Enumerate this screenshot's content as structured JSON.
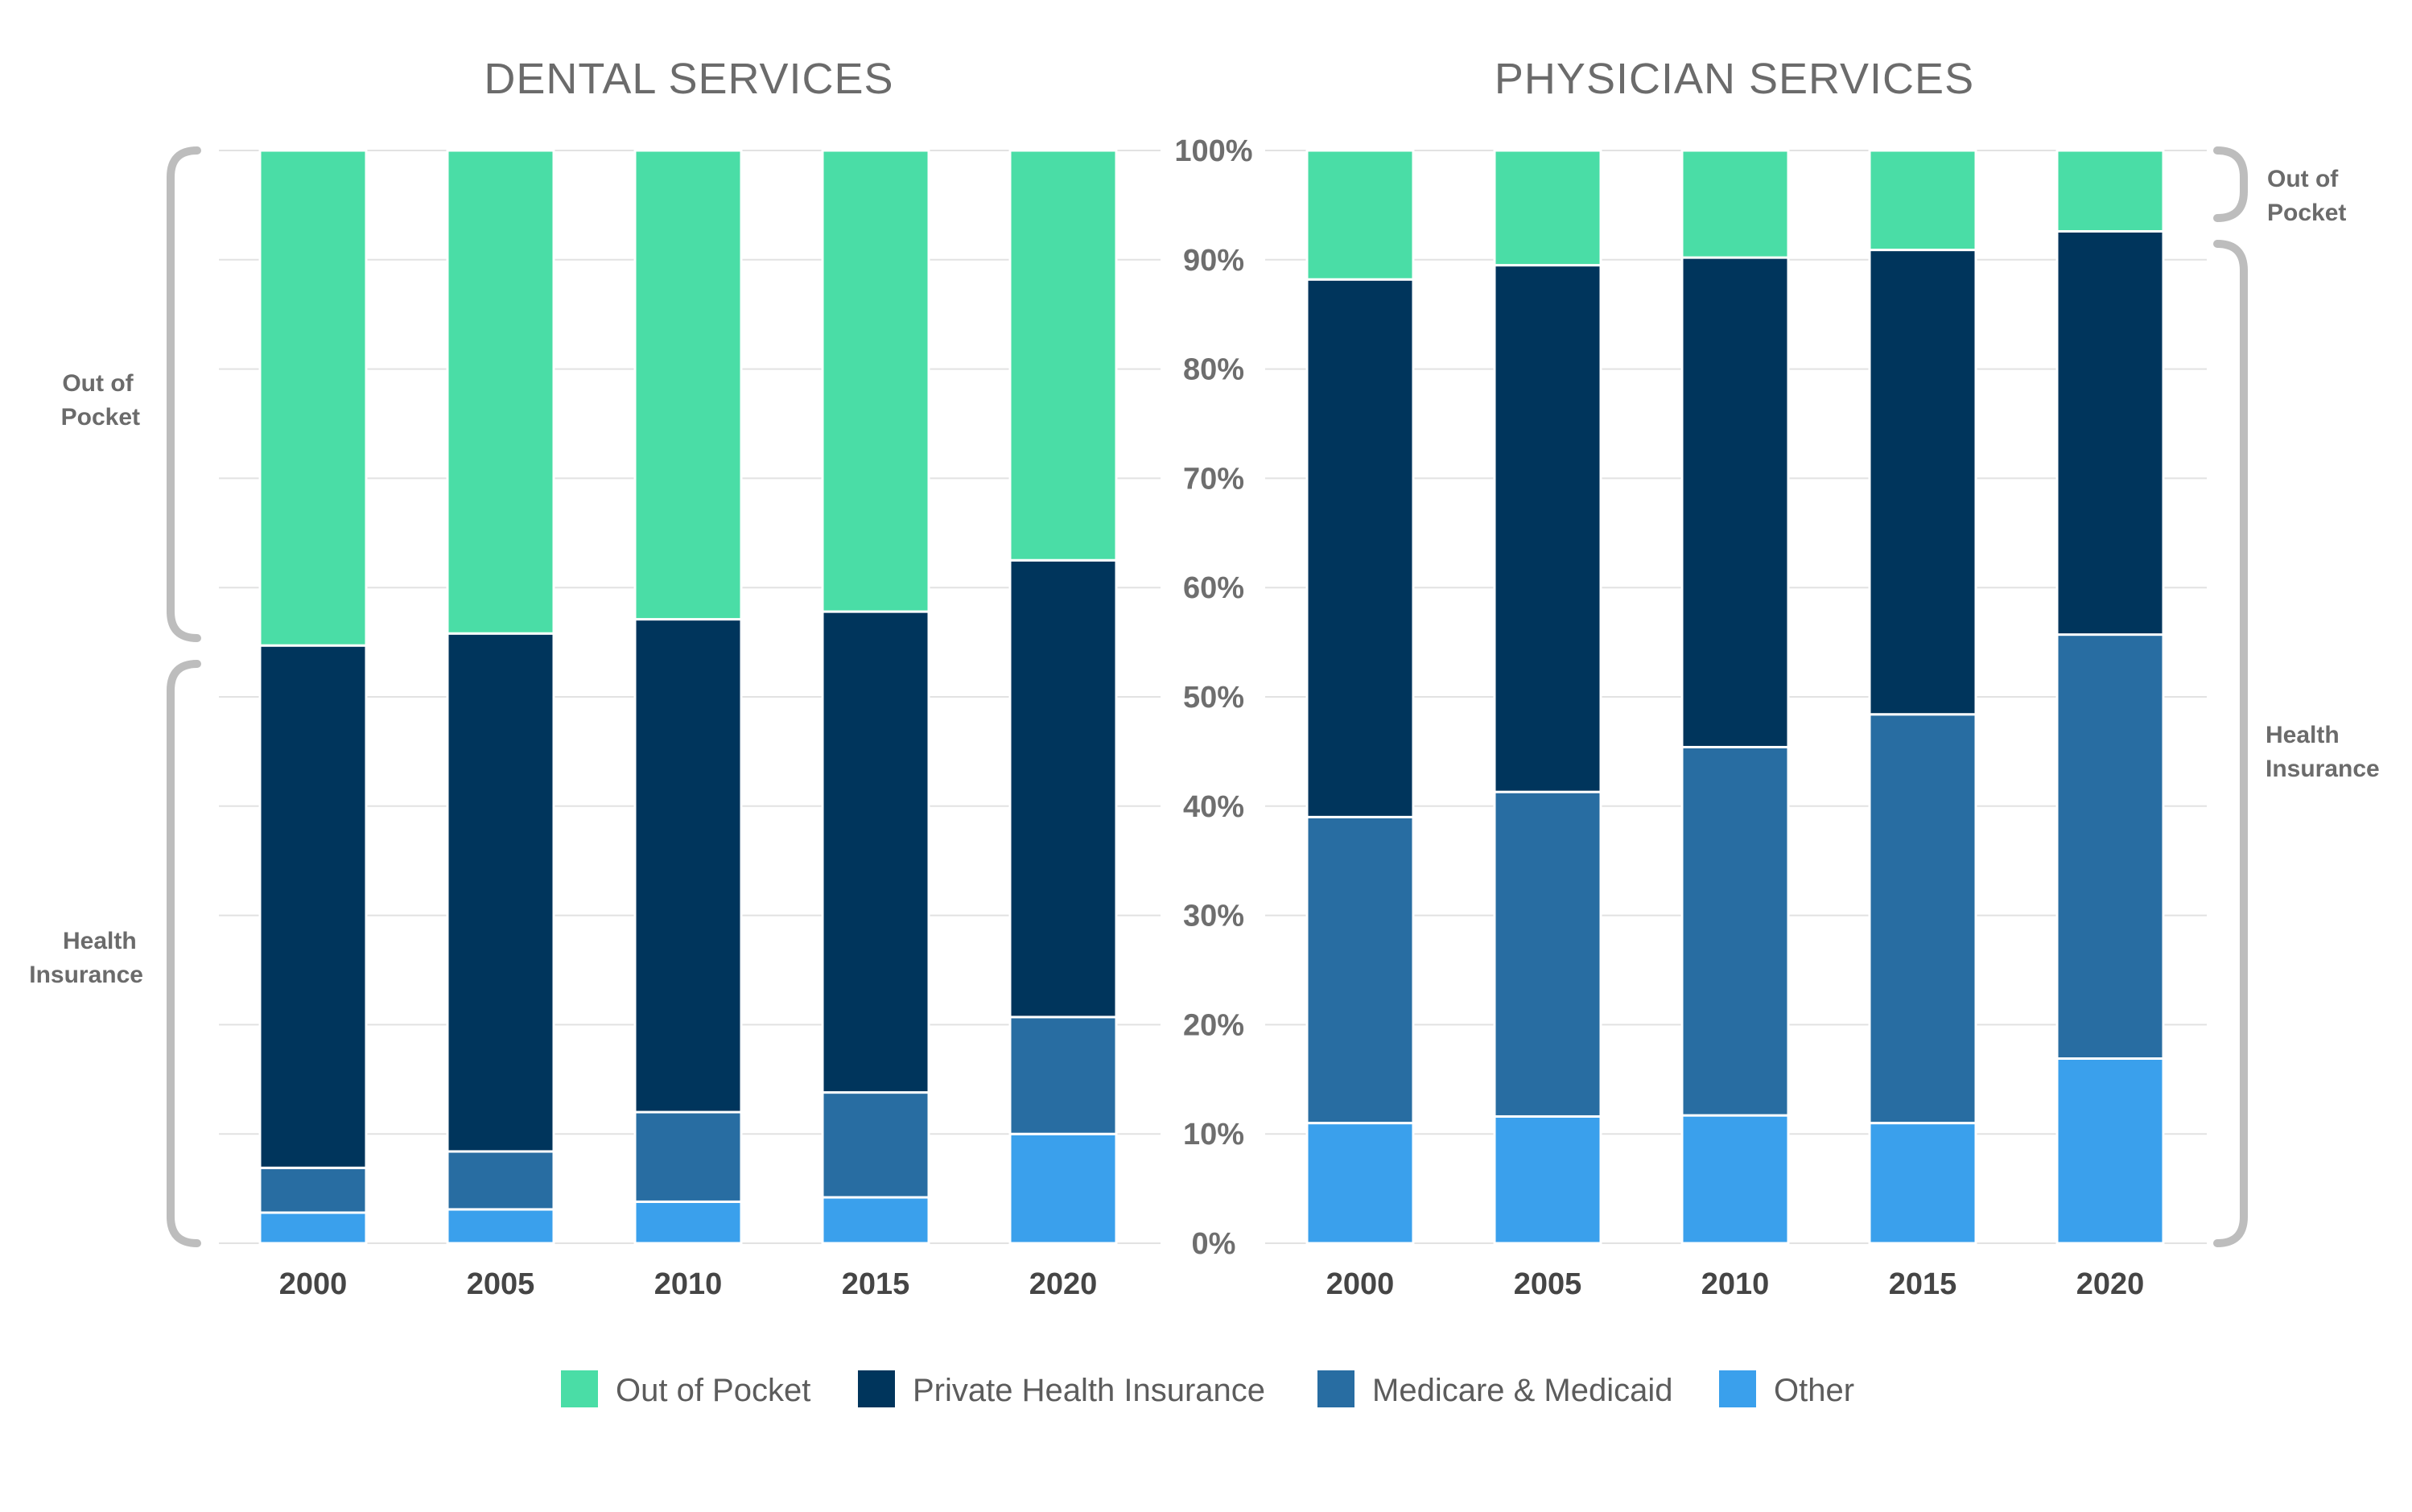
{
  "colors": {
    "out_of_pocket": "#4adda6",
    "private_health_insurance": "#00355c",
    "medicare_medicaid": "#286da2",
    "other": "#3aa0ec"
  },
  "brace_labels": {
    "out_of_pocket": [
      "Out of",
      "Pocket"
    ],
    "health_insurance": [
      "Health",
      "Insurance"
    ]
  },
  "legend": [
    {
      "key": "out_of_pocket",
      "label": "Out of Pocket"
    },
    {
      "key": "private_health_insurance",
      "label": "Private Health Insurance"
    },
    {
      "key": "medicare_medicaid",
      "label": "Medicare & Medicaid"
    },
    {
      "key": "other",
      "label": "Other"
    }
  ],
  "y_ticks": [
    "0%",
    "10%",
    "20%",
    "30%",
    "40%",
    "50%",
    "60%",
    "70%",
    "80%",
    "90%",
    "100%"
  ],
  "chart_data": [
    {
      "type": "bar",
      "stacked": true,
      "title": "DENTAL SERVICES",
      "categories": [
        "2000",
        "2005",
        "2010",
        "2015",
        "2020"
      ],
      "ylim": [
        0,
        100
      ],
      "grid": true,
      "series": [
        {
          "key": "other",
          "name": "Other",
          "values": [
            2.8,
            3.1,
            3.8,
            4.2,
            10.0
          ]
        },
        {
          "key": "medicare_medicaid",
          "name": "Medicare & Medicaid",
          "values": [
            4.1,
            5.3,
            8.2,
            9.6,
            10.7
          ]
        },
        {
          "key": "private_health_insurance",
          "name": "Private Health Insurance",
          "values": [
            47.8,
            47.4,
            45.1,
            44.0,
            41.8
          ]
        },
        {
          "key": "out_of_pocket",
          "name": "Out of Pocket",
          "values": [
            45.3,
            44.2,
            42.9,
            42.2,
            37.5
          ]
        }
      ]
    },
    {
      "type": "bar",
      "stacked": true,
      "title": "PHYSICIAN SERVICES",
      "categories": [
        "2000",
        "2005",
        "2010",
        "2015",
        "2020"
      ],
      "ylim": [
        0,
        100
      ],
      "grid": true,
      "series": [
        {
          "key": "other",
          "name": "Other",
          "values": [
            11.0,
            11.6,
            11.7,
            11.0,
            16.9
          ]
        },
        {
          "key": "medicare_medicaid",
          "name": "Medicare & Medicaid",
          "values": [
            28.0,
            29.7,
            33.7,
            37.4,
            38.8
          ]
        },
        {
          "key": "private_health_insurance",
          "name": "Private Health Insurance",
          "values": [
            49.2,
            48.2,
            44.8,
            42.5,
            36.9
          ]
        },
        {
          "key": "out_of_pocket",
          "name": "Out of Pocket",
          "values": [
            11.8,
            10.5,
            9.8,
            9.1,
            7.4
          ]
        }
      ]
    }
  ]
}
